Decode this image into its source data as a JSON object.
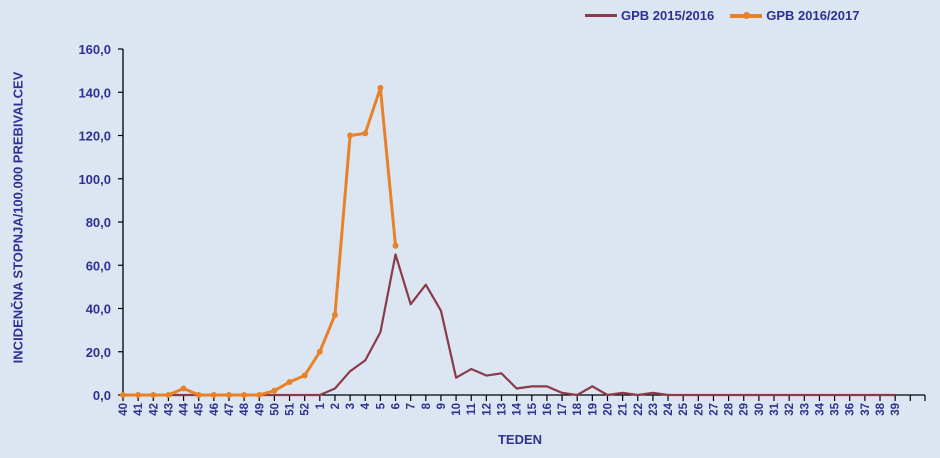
{
  "chart_data": {
    "type": "line",
    "title": "",
    "xlabel": "TEDEN",
    "ylabel": "INCIDENČNA STOPNJA/100.000 PREBIVALCEV",
    "ylim": [
      0,
      160
    ],
    "yticks": [
      "0,0",
      "20,0",
      "40,0",
      "60,0",
      "80,0",
      "100,0",
      "120,0",
      "140,0",
      "160,0"
    ],
    "grid": false,
    "legend_position": "top-right",
    "categories": [
      "40",
      "41",
      "42",
      "43",
      "44",
      "45",
      "46",
      "47",
      "48",
      "49",
      "50",
      "51",
      "52",
      "1",
      "2",
      "3",
      "4",
      "5",
      "6",
      "7",
      "8",
      "9",
      "10",
      "11",
      "12",
      "13",
      "14",
      "15",
      "16",
      "17",
      "18",
      "19",
      "20",
      "21",
      "22",
      "23",
      "24",
      "25",
      "26",
      "27",
      "28",
      "29",
      "30",
      "31",
      "32",
      "33",
      "34",
      "35",
      "36",
      "37",
      "38",
      "39"
    ],
    "series": [
      {
        "name": "GPB 2015/2016",
        "color": "#8b3a4a",
        "marker": false,
        "values": [
          0,
          0,
          0,
          0,
          0,
          0,
          0,
          0,
          0,
          0,
          0,
          0,
          0,
          0,
          3,
          11,
          16,
          29,
          65,
          42,
          51,
          39,
          8,
          12,
          9,
          10,
          3,
          4,
          4,
          1,
          0,
          4,
          0,
          1,
          0,
          1,
          0,
          0,
          0,
          0,
          0,
          0,
          0,
          0,
          0,
          0,
          0,
          0,
          0,
          0,
          0,
          0
        ]
      },
      {
        "name": "GPB 2016/2017",
        "color": "#e8822a",
        "marker": true,
        "values": [
          0,
          0,
          0,
          0,
          3,
          0,
          0,
          0,
          0,
          0,
          2,
          6,
          9,
          20,
          37,
          120,
          121,
          142,
          69
        ]
      }
    ]
  },
  "legend": {
    "items": [
      {
        "label": "GPB 2015/2016"
      },
      {
        "label": "GPB 2016/2017"
      }
    ]
  },
  "axes": {
    "x_title": "TEDEN",
    "y_title": "INCIDENČNA STOPNJA/100.000 PREBIVALCEV"
  }
}
